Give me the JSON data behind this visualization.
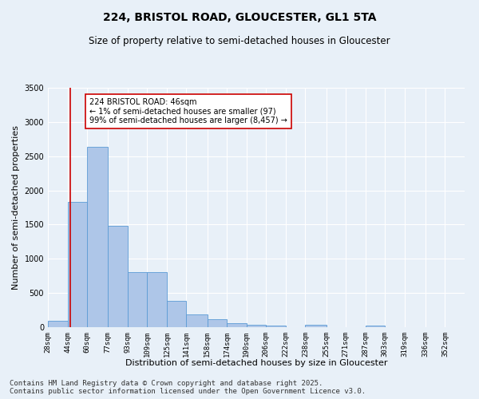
{
  "title_line1": "224, BRISTOL ROAD, GLOUCESTER, GL1 5TA",
  "title_line2": "Size of property relative to semi-detached houses in Gloucester",
  "xlabel": "Distribution of semi-detached houses by size in Gloucester",
  "ylabel": "Number of semi-detached properties",
  "footer_line1": "Contains HM Land Registry data © Crown copyright and database right 2025.",
  "footer_line2": "Contains public sector information licensed under the Open Government Licence v3.0.",
  "annotation_title": "224 BRISTOL ROAD: 46sqm",
  "annotation_line1": "← 1% of semi-detached houses are smaller (97)",
  "annotation_line2": "99% of semi-detached houses are larger (8,457) →",
  "subject_value": 46,
  "bar_left_edges": [
    28,
    44,
    60,
    77,
    93,
    109,
    125,
    141,
    158,
    174,
    190,
    206,
    222,
    238,
    255,
    271,
    287,
    303,
    319,
    336
  ],
  "bar_heights": [
    97,
    1830,
    2640,
    1480,
    810,
    810,
    390,
    185,
    120,
    55,
    40,
    25,
    5,
    30,
    5,
    5,
    25,
    5,
    5,
    5
  ],
  "bar_widths": [
    16,
    16,
    17,
    16,
    16,
    16,
    16,
    17,
    16,
    16,
    16,
    16,
    16,
    17,
    16,
    16,
    16,
    16,
    17,
    16
  ],
  "bar_color": "#aec6e8",
  "bar_edgecolor": "#5b9bd5",
  "vline_color": "#cc0000",
  "vline_x": 46,
  "ylim": [
    0,
    3500
  ],
  "yticks": [
    0,
    500,
    1000,
    1500,
    2000,
    2500,
    3000,
    3500
  ],
  "tick_labels": [
    "28sqm",
    "44sqm",
    "60sqm",
    "77sqm",
    "93sqm",
    "109sqm",
    "125sqm",
    "141sqm",
    "158sqm",
    "174sqm",
    "190sqm",
    "206sqm",
    "222sqm",
    "238sqm",
    "255sqm",
    "271sqm",
    "287sqm",
    "303sqm",
    "319sqm",
    "336sqm",
    "352sqm"
  ],
  "background_color": "#e8f0f8",
  "grid_color": "#ffffff",
  "title_fontsize": 10,
  "subtitle_fontsize": 8.5,
  "axis_label_fontsize": 8,
  "tick_fontsize": 6.5,
  "footer_fontsize": 6.5,
  "annotation_fontsize": 7
}
